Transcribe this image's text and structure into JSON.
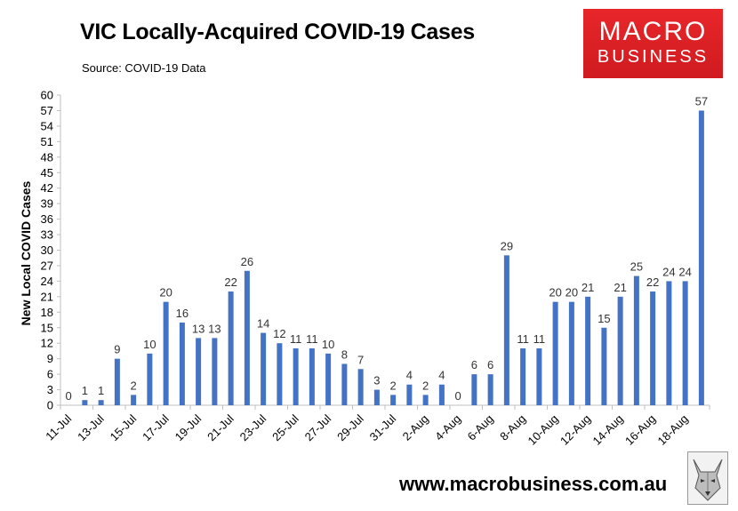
{
  "header": {
    "title": "VIC Locally-Acquired COVID-19 Cases",
    "subtitle": "Source: COVID-19 Data"
  },
  "logo": {
    "line1": "MACRO",
    "line2": "BUSINESS",
    "color": "#e8262a"
  },
  "footer": {
    "url": "www.macrobusiness.com.au"
  },
  "colors": {
    "bar": "#4472c4",
    "axis": "#bfbfbf"
  },
  "chart_data": {
    "type": "bar",
    "title": "VIC Locally-Acquired COVID-19 Cases",
    "xlabel": "",
    "ylabel": "New Local COVID Cases",
    "ylim": [
      0,
      60
    ],
    "yticks": [
      0,
      3,
      6,
      9,
      12,
      15,
      18,
      21,
      24,
      27,
      30,
      33,
      36,
      39,
      42,
      45,
      48,
      51,
      54,
      57,
      60
    ],
    "categories": [
      "11-Jul",
      "12-Jul",
      "13-Jul",
      "14-Jul",
      "15-Jul",
      "16-Jul",
      "17-Jul",
      "18-Jul",
      "19-Jul",
      "20-Jul",
      "21-Jul",
      "22-Jul",
      "23-Jul",
      "24-Jul",
      "25-Jul",
      "26-Jul",
      "27-Jul",
      "28-Jul",
      "29-Jul",
      "30-Jul",
      "31-Jul",
      "1-Aug",
      "2-Aug",
      "3-Aug",
      "4-Aug",
      "5-Aug",
      "6-Aug",
      "7-Aug",
      "8-Aug",
      "9-Aug",
      "10-Aug",
      "11-Aug",
      "12-Aug",
      "13-Aug",
      "14-Aug",
      "15-Aug",
      "16-Aug",
      "17-Aug",
      "18-Aug",
      "19-Aug"
    ],
    "tick_labels": [
      "11-Jul",
      "",
      "13-Jul",
      "",
      "15-Jul",
      "",
      "17-Jul",
      "",
      "19-Jul",
      "",
      "21-Jul",
      "",
      "23-Jul",
      "",
      "25-Jul",
      "",
      "27-Jul",
      "",
      "29-Jul",
      "",
      "31-Jul",
      "",
      "2-Aug",
      "",
      "4-Aug",
      "",
      "6-Aug",
      "",
      "8-Aug",
      "",
      "10-Aug",
      "",
      "12-Aug",
      "",
      "14-Aug",
      "",
      "16-Aug",
      "",
      "18-Aug",
      ""
    ],
    "values": [
      0,
      1,
      1,
      9,
      2,
      10,
      20,
      16,
      13,
      13,
      22,
      26,
      14,
      12,
      11,
      11,
      10,
      8,
      7,
      3,
      2,
      4,
      2,
      4,
      0,
      6,
      6,
      29,
      11,
      11,
      20,
      20,
      21,
      15,
      21,
      25,
      22,
      24,
      24,
      57
    ],
    "legend": "none",
    "grid": false
  }
}
